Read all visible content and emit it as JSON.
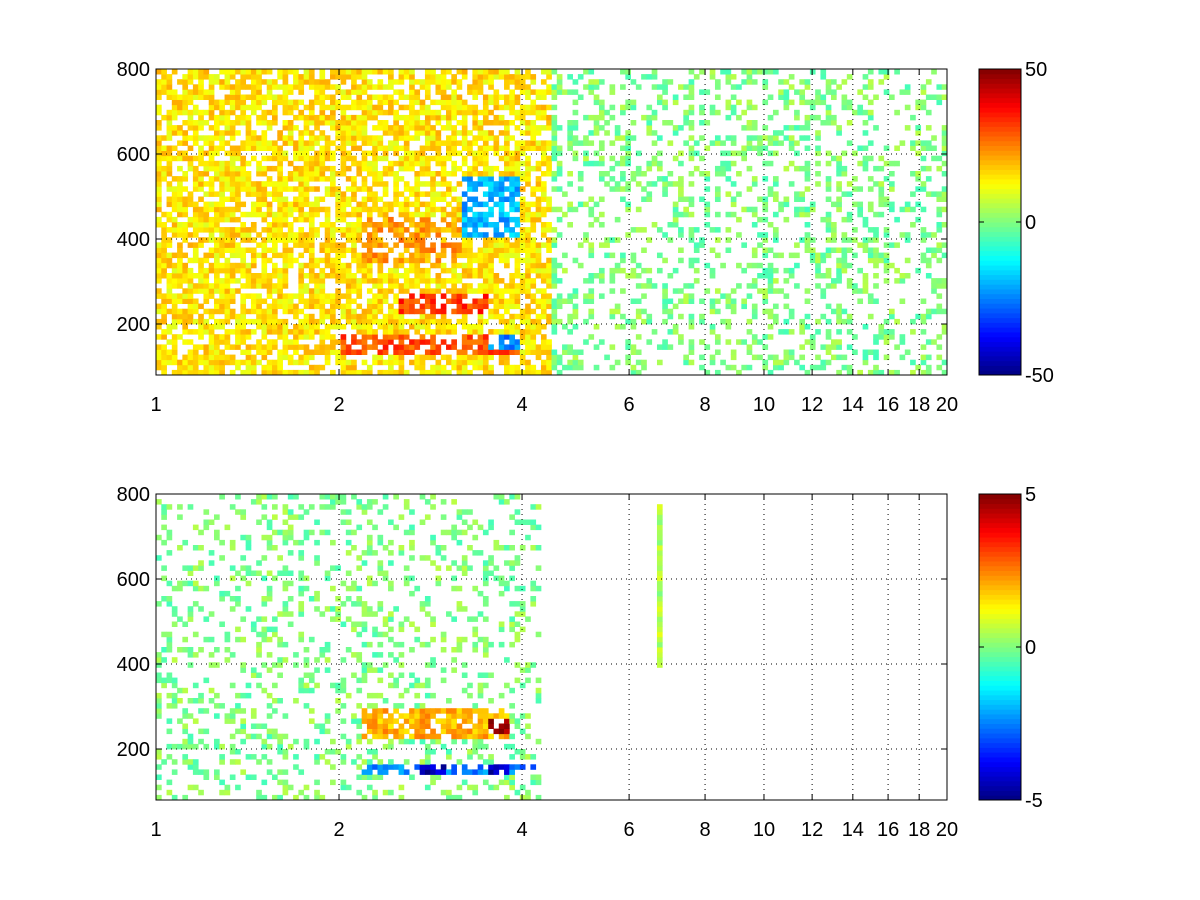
{
  "chart_data": [
    {
      "type": "heatmap",
      "title": "",
      "xlabel": "",
      "ylabel": "",
      "xlim": [
        1,
        20
      ],
      "ylim": [
        80,
        800
      ],
      "x_scale": "log",
      "x_ticks": [
        1,
        2,
        4,
        6,
        8,
        10,
        12,
        14,
        16,
        18,
        20
      ],
      "x_tick_labels": [
        "1",
        "2",
        "4",
        "6",
        "8",
        "10",
        "12",
        "14",
        "16",
        "18",
        "20"
      ],
      "y_ticks": [
        200,
        400,
        600,
        800
      ],
      "y_tick_labels": [
        "200",
        "400",
        "600",
        "800"
      ],
      "grid": true,
      "colormap": "jet",
      "clim": [
        -50,
        50
      ],
      "colorbar_ticks": [
        -50,
        0,
        50
      ],
      "colorbar_tick_labels": [
        "-50",
        "0",
        "50"
      ],
      "background": "#ffffff",
      "features": [
        {
          "x_range": [
            1,
            4.5
          ],
          "y_range": [
            80,
            800
          ],
          "value": 15
        },
        {
          "x_range": [
            2,
            4
          ],
          "y_range": [
            130,
            170
          ],
          "value": 30
        },
        {
          "x_range": [
            2.5,
            3.5
          ],
          "y_range": [
            230,
            270
          ],
          "value": 32
        },
        {
          "x_range": [
            2.2,
            3.2
          ],
          "y_range": [
            350,
            450
          ],
          "value": 22
        },
        {
          "x_range": [
            3.2,
            4
          ],
          "y_range": [
            400,
            550
          ],
          "value": -20
        },
        {
          "x_range": [
            3.5,
            4
          ],
          "y_range": [
            140,
            170
          ],
          "value": -25
        },
        {
          "x_range": [
            4.5,
            20
          ],
          "y_range": [
            80,
            800
          ],
          "value": 0
        }
      ]
    },
    {
      "type": "heatmap",
      "title": "",
      "xlabel": "",
      "ylabel": "",
      "xlim": [
        1,
        20
      ],
      "ylim": [
        80,
        800
      ],
      "x_scale": "log",
      "x_ticks": [
        1,
        2,
        4,
        6,
        8,
        10,
        12,
        14,
        16,
        18,
        20
      ],
      "x_tick_labels": [
        "1",
        "2",
        "4",
        "6",
        "8",
        "10",
        "12",
        "14",
        "16",
        "18",
        "20"
      ],
      "y_ticks": [
        200,
        400,
        600,
        800
      ],
      "y_tick_labels": [
        "200",
        "400",
        "600",
        "800"
      ],
      "grid": true,
      "colormap": "jet",
      "clim": [
        -5,
        5
      ],
      "colorbar_ticks": [
        -5,
        0,
        5
      ],
      "colorbar_tick_labels": [
        "-5",
        "0",
        "5"
      ],
      "background": "#ffffff",
      "features": [
        {
          "x_range": [
            2.2,
            4.2
          ],
          "y_range": [
            135,
            165
          ],
          "value": -2.5
        },
        {
          "x_range": [
            2.7,
            3.0
          ],
          "y_range": [
            140,
            165
          ],
          "value": -4.5
        },
        {
          "x_range": [
            3.5,
            3.8
          ],
          "y_range": [
            140,
            165
          ],
          "value": -4.5
        },
        {
          "x_range": [
            2.2,
            3.8
          ],
          "y_range": [
            230,
            290
          ],
          "value": 2
        },
        {
          "x_range": [
            3.5,
            3.8
          ],
          "y_range": [
            240,
            270
          ],
          "value": 4.5
        },
        {
          "x_range": [
            2.0,
            3.8
          ],
          "y_range": [
            300,
            780
          ],
          "value": 0
        },
        {
          "x_range": [
            6.7,
            6.8
          ],
          "y_range": [
            390,
            780
          ],
          "value": 0.5
        }
      ]
    }
  ]
}
